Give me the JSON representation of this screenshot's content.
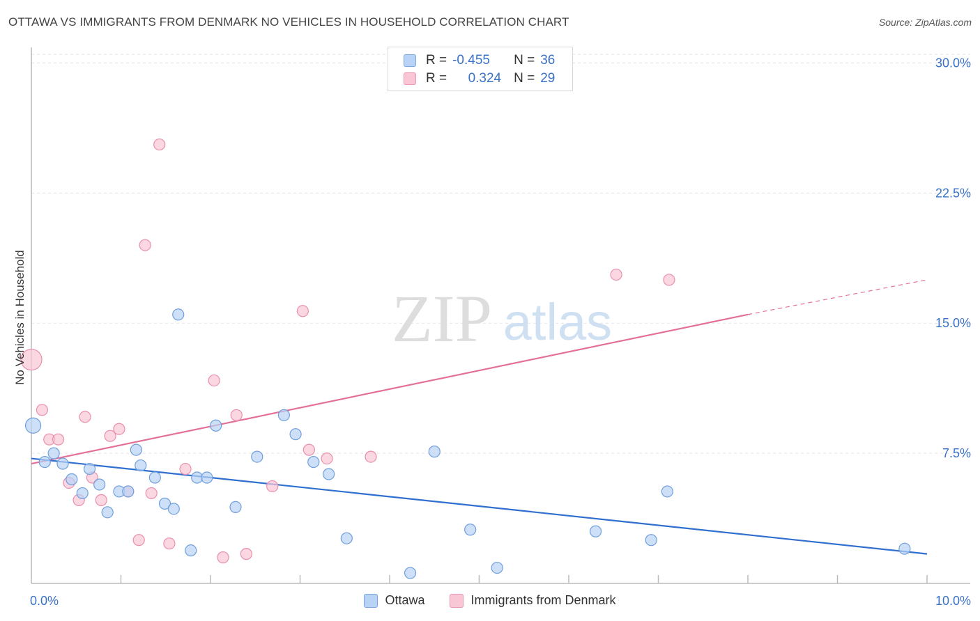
{
  "title": "OTTAWA VS IMMIGRANTS FROM DENMARK NO VEHICLES IN HOUSEHOLD CORRELATION CHART",
  "source": "Source: ZipAtlas.com",
  "watermark": {
    "zip": "ZIP",
    "atlas": "atlas"
  },
  "legend": {
    "r_label": "R =",
    "n_label": "N =",
    "rows": [
      {
        "r": "-0.455",
        "n": "36"
      },
      {
        "r": "0.324",
        "n": "29"
      }
    ]
  },
  "colors": {
    "ottawa_fill": "#b8d3f5",
    "ottawa_stroke": "#6f9fdc",
    "ottawa_line": "#2f6fd0",
    "denmark_fill": "#f9c6d5",
    "denmark_stroke": "#ea8fab",
    "denmark_line": "#e4709a",
    "axis_label": "#3a72c8",
    "grid": "#e3e3e3"
  },
  "chart_data": {
    "type": "scatter",
    "title": "OTTAWA VS IMMIGRANTS FROM DENMARK NO VEHICLES IN HOUSEHOLD CORRELATION CHART",
    "xlabel": "",
    "ylabel": "No Vehicles in Household",
    "xlim": [
      0,
      10
    ],
    "ylim": [
      0,
      30.5
    ],
    "x_tick_labels": [
      "0.0%",
      "10.0%"
    ],
    "y_ticks": [
      7.5,
      15.0,
      22.5,
      30.0
    ],
    "y_tick_labels": [
      "7.5%",
      "15.0%",
      "22.5%",
      "30.0%"
    ],
    "grid": true,
    "legend_position": "top-center",
    "series": [
      {
        "name": "Ottawa",
        "points": [
          [
            0.02,
            9.1,
            11
          ],
          [
            0.15,
            7.0,
            8
          ],
          [
            0.25,
            7.5,
            8
          ],
          [
            0.35,
            6.9,
            8
          ],
          [
            0.45,
            6.0,
            8
          ],
          [
            0.57,
            5.2,
            8
          ],
          [
            0.65,
            6.6,
            8
          ],
          [
            0.76,
            5.7,
            8
          ],
          [
            0.85,
            4.1,
            8
          ],
          [
            0.98,
            5.3,
            8
          ],
          [
            1.08,
            5.3,
            8
          ],
          [
            1.17,
            7.7,
            8
          ],
          [
            1.22,
            6.8,
            8
          ],
          [
            1.38,
            6.1,
            8
          ],
          [
            1.49,
            4.6,
            8
          ],
          [
            1.59,
            4.3,
            8
          ],
          [
            1.64,
            15.5,
            8
          ],
          [
            1.78,
            1.9,
            8
          ],
          [
            1.85,
            6.1,
            8
          ],
          [
            1.96,
            6.1,
            8
          ],
          [
            2.06,
            9.1,
            8
          ],
          [
            2.28,
            4.4,
            8
          ],
          [
            2.52,
            7.3,
            8
          ],
          [
            2.82,
            9.7,
            8
          ],
          [
            2.95,
            8.6,
            8
          ],
          [
            3.15,
            7.0,
            8
          ],
          [
            3.32,
            6.3,
            8
          ],
          [
            3.52,
            2.6,
            8
          ],
          [
            4.23,
            0.6,
            8
          ],
          [
            4.5,
            7.6,
            8
          ],
          [
            4.9,
            3.1,
            8
          ],
          [
            5.2,
            0.9,
            8
          ],
          [
            6.3,
            3.0,
            8
          ],
          [
            6.92,
            2.5,
            8
          ],
          [
            7.1,
            5.3,
            8
          ],
          [
            9.75,
            2.0,
            8
          ]
        ],
        "trend": {
          "x": [
            0,
            10
          ],
          "y": [
            7.2,
            1.7
          ]
        }
      },
      {
        "name": "Immigrants from Denmark",
        "points": [
          [
            0.0,
            12.9,
            15
          ],
          [
            0.12,
            10.0,
            8
          ],
          [
            0.2,
            8.3,
            8
          ],
          [
            0.3,
            8.3,
            8
          ],
          [
            0.42,
            5.8,
            8
          ],
          [
            0.53,
            4.8,
            8
          ],
          [
            0.6,
            9.6,
            8
          ],
          [
            0.68,
            6.1,
            8
          ],
          [
            0.78,
            4.8,
            8
          ],
          [
            0.88,
            8.5,
            8
          ],
          [
            0.98,
            8.9,
            8
          ],
          [
            1.08,
            5.3,
            8
          ],
          [
            1.2,
            2.5,
            8
          ],
          [
            1.27,
            19.5,
            8
          ],
          [
            1.34,
            5.2,
            8
          ],
          [
            1.43,
            25.3,
            8
          ],
          [
            1.54,
            2.3,
            8
          ],
          [
            1.72,
            6.6,
            8
          ],
          [
            2.04,
            11.7,
            8
          ],
          [
            2.14,
            1.5,
            8
          ],
          [
            2.29,
            9.7,
            8
          ],
          [
            2.4,
            1.7,
            8
          ],
          [
            2.69,
            5.6,
            8
          ],
          [
            3.03,
            15.7,
            8
          ],
          [
            3.1,
            7.7,
            8
          ],
          [
            3.3,
            7.2,
            8
          ],
          [
            3.79,
            7.3,
            8
          ],
          [
            6.53,
            17.8,
            8
          ],
          [
            7.12,
            17.5,
            8
          ]
        ],
        "trend": {
          "x": [
            0,
            8.0
          ],
          "y": [
            6.9,
            15.5
          ]
        },
        "trend_dashed": {
          "x": [
            8.0,
            10.0
          ],
          "y": [
            15.5,
            17.5
          ]
        }
      }
    ]
  },
  "bottom_legend": [
    "Ottawa",
    "Immigrants from Denmark"
  ]
}
